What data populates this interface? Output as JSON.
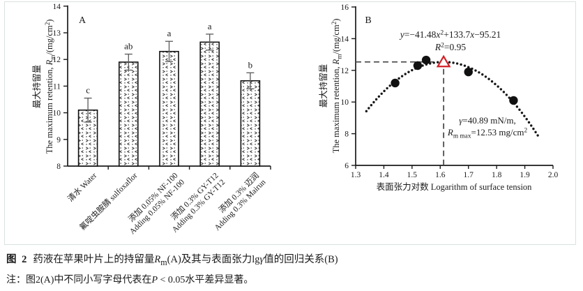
{
  "colors": {
    "axis_black": "#1a1a1a",
    "bar_stroke": "#111111",
    "error_bar_gray": "#595959",
    "dash_gray": "#4d4d4d",
    "curve_black": "#161616",
    "marker_red": "#d21f26",
    "panel_border": "#d9e2e0"
  },
  "chart_data": [
    {
      "type": "bar",
      "panel_label": "A",
      "ylabel_cn": "最大持留量",
      "ylabel_en_segments": [
        {
          "t": "The maximum retention, "
        },
        {
          "t": "R",
          "i": true
        },
        {
          "t": "m",
          "sub": true
        },
        {
          "t": "/(mg/cm"
        },
        {
          "t": "2",
          "sup": true
        },
        {
          "t": ")"
        }
      ],
      "ylim": [
        8,
        14
      ],
      "yticks": [
        8,
        9,
        10,
        11,
        12,
        13,
        14
      ],
      "categories": [
        {
          "line1": "清水 Water"
        },
        {
          "line1": "氟啶虫胺腈 sulfoxaflor"
        },
        {
          "line1": "添加 0.05% NF-100",
          "line2": "Adding 0.05% NF-100"
        },
        {
          "line1": "添加 0.3% GY-T12",
          "line2": "Adding 0.3% GY-T12"
        },
        {
          "line1": "添加 0.3% 迈润",
          "line2": "Adding 0.3% Mairun"
        }
      ],
      "values": [
        10.1,
        11.9,
        12.3,
        12.65,
        11.2
      ],
      "errors": [
        0.45,
        0.3,
        0.38,
        0.3,
        0.3
      ],
      "sig_letters": [
        "c",
        "ab",
        "a",
        "a",
        "b"
      ],
      "grid": false
    },
    {
      "type": "scatter",
      "panel_label": "B",
      "xlabel": "表面张力对数 Logarithm of surface tension",
      "ylabel_cn": "最大持留量",
      "ylabel_en_segments": [
        {
          "t": "The maximum retention, "
        },
        {
          "t": "R",
          "i": true
        },
        {
          "t": "m",
          "sub": true
        },
        {
          "t": "/(mg/cm"
        },
        {
          "t": "2",
          "sup": true
        },
        {
          "t": ")"
        }
      ],
      "xlim": [
        1.3,
        2.0
      ],
      "xticks": [
        1.3,
        1.4,
        1.5,
        1.6,
        1.7,
        1.8,
        1.9,
        2.0
      ],
      "ylim": [
        6,
        16
      ],
      "yticks": [
        6,
        8,
        10,
        12,
        14,
        16
      ],
      "points": [
        {
          "x": 1.44,
          "y": 11.2
        },
        {
          "x": 1.52,
          "y": 12.3
        },
        {
          "x": 1.55,
          "y": 12.65
        },
        {
          "x": 1.7,
          "y": 11.9
        },
        {
          "x": 1.86,
          "y": 10.1
        }
      ],
      "fit": {
        "a": -41.48,
        "b": 133.7,
        "c": -95.21,
        "x_start": 1.338,
        "x_end": 1.952
      },
      "peak": {
        "x": 1.612,
        "y": 12.53
      },
      "equation_line1_segments": [
        {
          "t": "y",
          "i": true
        },
        {
          "t": "=−41.48"
        },
        {
          "t": "x",
          "i": true
        },
        {
          "t": "2",
          "sup": true
        },
        {
          "t": "+133.7"
        },
        {
          "t": "x",
          "i": true
        },
        {
          "t": "−95.21"
        }
      ],
      "equation_line2_segments": [
        {
          "t": "R",
          "i": true
        },
        {
          "t": "2",
          "sup": true
        },
        {
          "t": "=0.95"
        }
      ],
      "annotation_line1_segments": [
        {
          "t": "γ",
          "i": true
        },
        {
          "t": "=40.89 mN/m,"
        }
      ],
      "annotation_line2_segments": [
        {
          "t": "R",
          "i": true
        },
        {
          "t": "m max",
          "sub": true
        },
        {
          "t": "=12.53 mg/cm"
        },
        {
          "t": "2",
          "sup": true
        }
      ],
      "grid": false
    }
  ],
  "caption": {
    "fig_label": "图 2",
    "line1_segments": [
      {
        "t": "药液在苹果叶片上的持留量"
      },
      {
        "t": "R",
        "i": true
      },
      {
        "t": "m",
        "sub": true
      },
      {
        "t": "(A)及其与表面张力lg"
      },
      {
        "t": "γ",
        "i": true
      },
      {
        "t": "值的回归关系(B)"
      }
    ],
    "note_segments": [
      {
        "t": "注：图2(A)中不同小写字母代表在"
      },
      {
        "t": "P",
        "i": true
      },
      {
        "t": " < 0.05水平差异显著。"
      }
    ]
  }
}
